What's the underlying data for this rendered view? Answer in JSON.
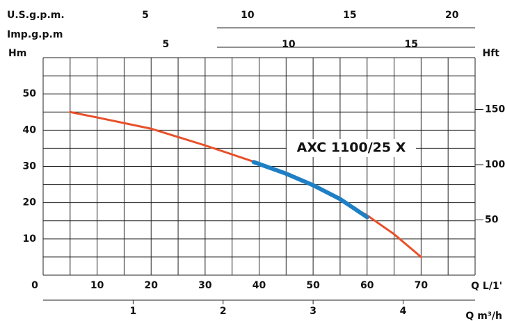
{
  "chart_data": {
    "type": "line",
    "annotation": "AXC 1100/25 X",
    "ylabel": "Hm",
    "y2label": "Hft",
    "xlabel": "Q L/1'",
    "xlim": [
      0,
      80
    ],
    "xticks": [
      0,
      10,
      20,
      30,
      40,
      50,
      60,
      70
    ],
    "ylim": [
      0,
      60
    ],
    "yticks": [
      10,
      20,
      30,
      40,
      50
    ],
    "y2lim": [
      0,
      196.85
    ],
    "y2ticks": [
      50,
      100,
      150
    ],
    "grid": true,
    "xgrid": [
      0,
      5,
      10,
      15,
      20,
      25,
      30,
      35,
      40,
      45,
      50,
      55,
      60,
      65,
      70,
      75,
      80
    ],
    "ygrid": [
      0,
      5,
      10,
      15,
      20,
      25,
      30,
      35,
      40,
      45,
      50,
      55,
      60
    ],
    "extra_x_axes": [
      {
        "label": "U.S.g.p.m.",
        "lim": [
          0,
          21.13
        ],
        "ticks": [
          5,
          10,
          15,
          20
        ],
        "position": "top"
      },
      {
        "label": "Imp.g.p.m",
        "lim": [
          0,
          17.6
        ],
        "ticks": [
          5,
          10,
          15
        ],
        "position": "top"
      },
      {
        "label": "Q m³/h",
        "lim": [
          0,
          4.8
        ],
        "ticks": [
          1,
          2,
          3,
          4
        ],
        "position": "bottom"
      }
    ],
    "series": [
      {
        "color": "#e8502a",
        "x": [
          5,
          10,
          20,
          30,
          40,
          50,
          60,
          65,
          70
        ],
        "values": [
          45,
          43.5,
          40.4,
          35.8,
          30.8,
          24.8,
          16.5,
          11.3,
          5
        ]
      },
      {
        "color": "#1f7fc4",
        "x": [
          39,
          45,
          50,
          55,
          60
        ],
        "values": [
          31.2,
          28,
          24.8,
          21,
          16
        ]
      }
    ]
  }
}
